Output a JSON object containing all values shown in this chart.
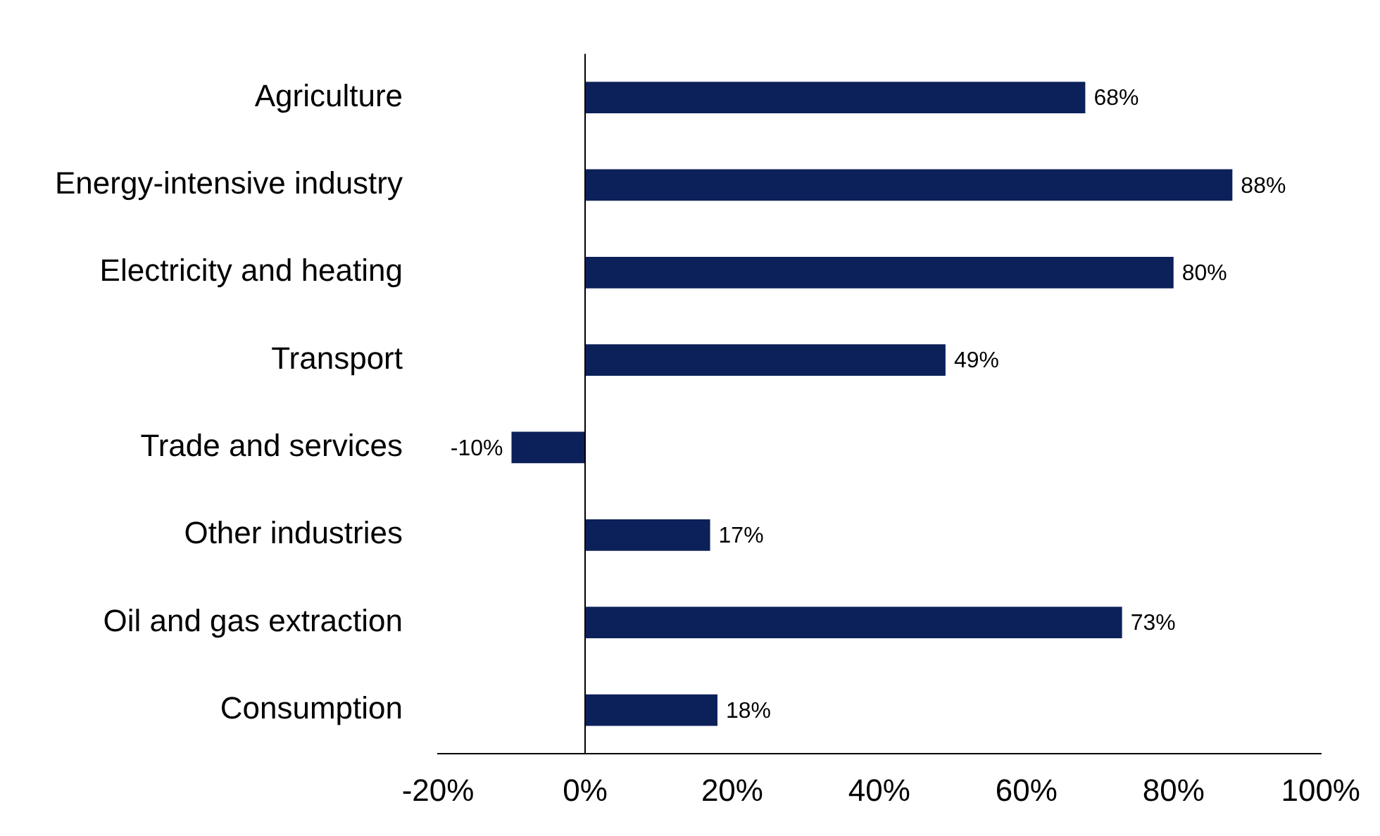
{
  "chart_data": {
    "type": "bar",
    "orientation": "horizontal",
    "categories": [
      "Agriculture",
      "Energy-intensive industry",
      "Electricity and heating",
      "Transport",
      "Trade and services",
      "Other industries",
      "Oil and gas extraction",
      "Consumption"
    ],
    "values": [
      68,
      88,
      80,
      49,
      -10,
      17,
      73,
      18
    ],
    "value_labels": [
      "68%",
      "88%",
      "80%",
      "49%",
      "-10%",
      "17%",
      "73%",
      "18%"
    ],
    "color": "#0c2159",
    "xlim": [
      -20,
      100
    ],
    "xticks": [
      {
        "value": -20,
        "label": "-20%"
      },
      {
        "value": 0,
        "label": "0%"
      },
      {
        "value": 20,
        "label": "20%"
      },
      {
        "value": 40,
        "label": "40%"
      },
      {
        "value": 60,
        "label": "60%"
      },
      {
        "value": 80,
        "label": "80%"
      },
      {
        "value": 100,
        "label": "100%"
      }
    ],
    "ref_lines": [
      {
        "axis": "x",
        "value": 0,
        "color": "#000000"
      }
    ],
    "grid": false,
    "legend": false
  }
}
